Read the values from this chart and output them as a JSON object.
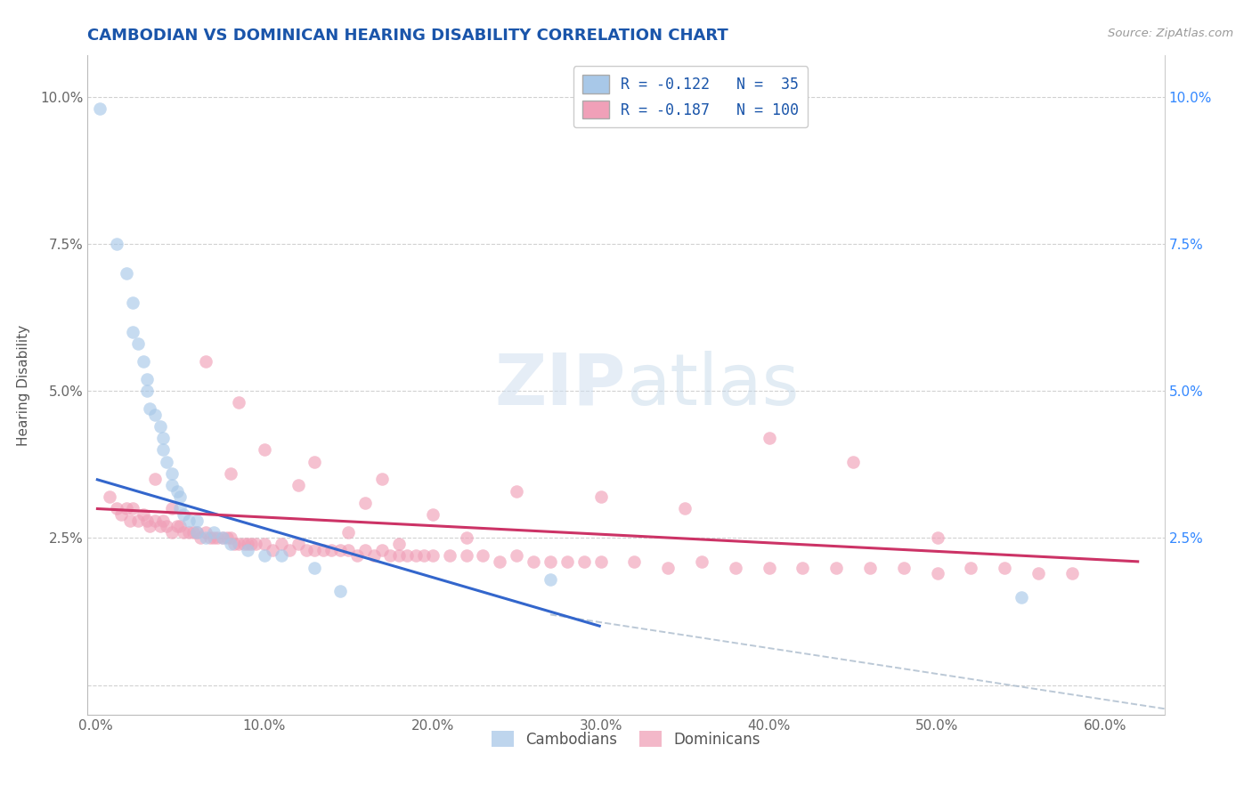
{
  "title": "CAMBODIAN VS DOMINICAN HEARING DISABILITY CORRELATION CHART",
  "source": "Source: ZipAtlas.com",
  "xlabel_vals": [
    0.0,
    0.1,
    0.2,
    0.3,
    0.4,
    0.5,
    0.6
  ],
  "xlabel_ticks": [
    "0.0%",
    "10.0%",
    "20.0%",
    "30.0%",
    "40.0%",
    "50.0%",
    "60.0%"
  ],
  "ylabel_vals": [
    0.0,
    0.025,
    0.05,
    0.075,
    0.1
  ],
  "ylabel_left_ticks": [
    "",
    "2.5%",
    "5.0%",
    "7.5%",
    "10.0%"
  ],
  "ylabel_right_ticks": [
    "",
    "2.5%",
    "5.0%",
    "7.5%",
    "10.0%"
  ],
  "xlim": [
    -0.005,
    0.635
  ],
  "ylim": [
    -0.005,
    0.107
  ],
  "color_cambodian": "#a8c8e8",
  "color_dominican": "#f0a0b8",
  "line_color_cambodian": "#3366cc",
  "line_color_dominican": "#cc3366",
  "line_color_dashed": "#aabbcc",
  "bg_color": "#ffffff",
  "grid_color": "#cccccc",
  "title_color": "#1a55aa",
  "watermark_color": "#d0e4f0",
  "legend_box_color_cambodian": "#a8c8e8",
  "legend_box_color_dominican": "#f0a0b8",
  "legend_text_color": "#1a55aa",
  "right_axis_color": "#3388ff",
  "left_axis_tick_color": "#555555",
  "bottom_legend_color": "#555555",
  "cambodian_x": [
    0.002,
    0.012,
    0.018,
    0.022,
    0.022,
    0.025,
    0.028,
    0.03,
    0.03,
    0.032,
    0.035,
    0.038,
    0.04,
    0.04,
    0.042,
    0.045,
    0.045,
    0.048,
    0.05,
    0.05,
    0.052,
    0.055,
    0.06,
    0.06,
    0.065,
    0.07,
    0.075,
    0.08,
    0.09,
    0.1,
    0.11,
    0.13,
    0.145,
    0.27,
    0.55
  ],
  "cambodian_y": [
    0.098,
    0.075,
    0.07,
    0.065,
    0.06,
    0.058,
    0.055,
    0.052,
    0.05,
    0.047,
    0.046,
    0.044,
    0.042,
    0.04,
    0.038,
    0.036,
    0.034,
    0.033,
    0.032,
    0.03,
    0.029,
    0.028,
    0.028,
    0.026,
    0.025,
    0.026,
    0.025,
    0.024,
    0.023,
    0.022,
    0.022,
    0.02,
    0.016,
    0.018,
    0.015
  ],
  "dominican_x": [
    0.008,
    0.012,
    0.015,
    0.018,
    0.02,
    0.022,
    0.025,
    0.028,
    0.03,
    0.032,
    0.035,
    0.038,
    0.04,
    0.042,
    0.045,
    0.048,
    0.05,
    0.052,
    0.055,
    0.058,
    0.06,
    0.062,
    0.065,
    0.068,
    0.07,
    0.072,
    0.075,
    0.078,
    0.08,
    0.082,
    0.085,
    0.088,
    0.09,
    0.092,
    0.095,
    0.1,
    0.105,
    0.11,
    0.115,
    0.12,
    0.125,
    0.13,
    0.135,
    0.14,
    0.145,
    0.15,
    0.155,
    0.16,
    0.165,
    0.17,
    0.175,
    0.18,
    0.185,
    0.19,
    0.195,
    0.2,
    0.21,
    0.22,
    0.23,
    0.24,
    0.25,
    0.26,
    0.27,
    0.28,
    0.29,
    0.3,
    0.32,
    0.34,
    0.36,
    0.38,
    0.4,
    0.42,
    0.44,
    0.46,
    0.48,
    0.5,
    0.52,
    0.54,
    0.56,
    0.58,
    0.25,
    0.3,
    0.35,
    0.4,
    0.45,
    0.5,
    0.08,
    0.12,
    0.16,
    0.2,
    0.065,
    0.085,
    0.1,
    0.13,
    0.17,
    0.22,
    0.15,
    0.18,
    0.035,
    0.045
  ],
  "dominican_y": [
    0.032,
    0.03,
    0.029,
    0.03,
    0.028,
    0.03,
    0.028,
    0.029,
    0.028,
    0.027,
    0.028,
    0.027,
    0.028,
    0.027,
    0.026,
    0.027,
    0.027,
    0.026,
    0.026,
    0.026,
    0.026,
    0.025,
    0.026,
    0.025,
    0.025,
    0.025,
    0.025,
    0.025,
    0.025,
    0.024,
    0.024,
    0.024,
    0.024,
    0.024,
    0.024,
    0.024,
    0.023,
    0.024,
    0.023,
    0.024,
    0.023,
    0.023,
    0.023,
    0.023,
    0.023,
    0.023,
    0.022,
    0.023,
    0.022,
    0.023,
    0.022,
    0.022,
    0.022,
    0.022,
    0.022,
    0.022,
    0.022,
    0.022,
    0.022,
    0.021,
    0.022,
    0.021,
    0.021,
    0.021,
    0.021,
    0.021,
    0.021,
    0.02,
    0.021,
    0.02,
    0.02,
    0.02,
    0.02,
    0.02,
    0.02,
    0.019,
    0.02,
    0.02,
    0.019,
    0.019,
    0.033,
    0.032,
    0.03,
    0.042,
    0.038,
    0.025,
    0.036,
    0.034,
    0.031,
    0.029,
    0.055,
    0.048,
    0.04,
    0.038,
    0.035,
    0.025,
    0.026,
    0.024,
    0.035,
    0.03
  ],
  "blue_line_x": [
    0.0,
    0.3
  ],
  "blue_line_y": [
    0.035,
    0.01
  ],
  "pink_line_x": [
    0.0,
    0.62
  ],
  "pink_line_y": [
    0.03,
    0.021
  ],
  "dashed_line_x": [
    0.27,
    0.635
  ],
  "dashed_line_y": [
    0.012,
    -0.004
  ]
}
